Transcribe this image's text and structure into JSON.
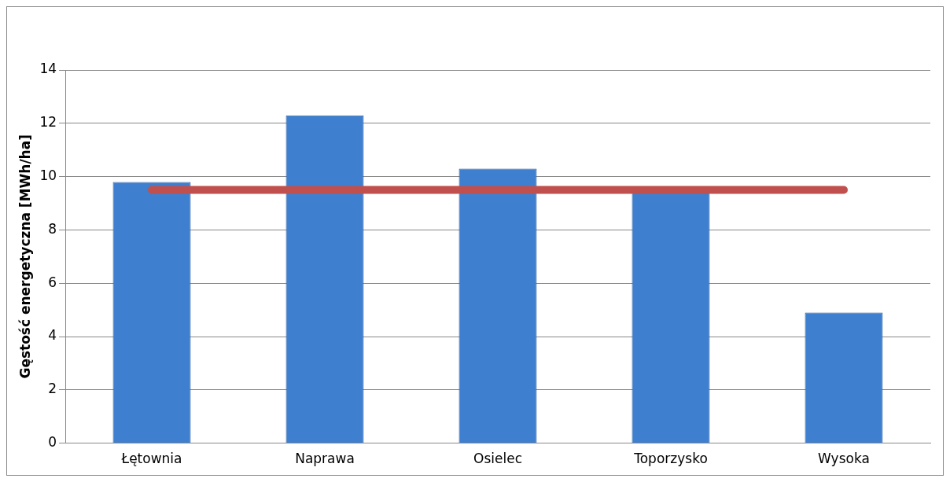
{
  "chart_data": {
    "type": "bar",
    "ylabel": "Gęstość energetyczna [MWh/ha]",
    "categories": [
      "Łętownia",
      "Naprawa",
      "Osielec",
      "Toporzysko",
      "Wysoka"
    ],
    "series": [
      {
        "color": "#3f7fcf",
        "values": [
          9.8,
          12.3,
          10.3,
          9.4,
          4.9
        ]
      },
      {
        "type": "line",
        "color": "#c0504d",
        "values": [
          9.5,
          9.5,
          9.5,
          9.5,
          9.5
        ]
      }
    ],
    "ylim": [
      0,
      14
    ],
    "yticks": [
      0,
      2,
      4,
      6,
      8,
      10,
      12,
      14
    ],
    "grid": "y",
    "legend": false,
    "marker": "none",
    "line_style": "solid"
  }
}
